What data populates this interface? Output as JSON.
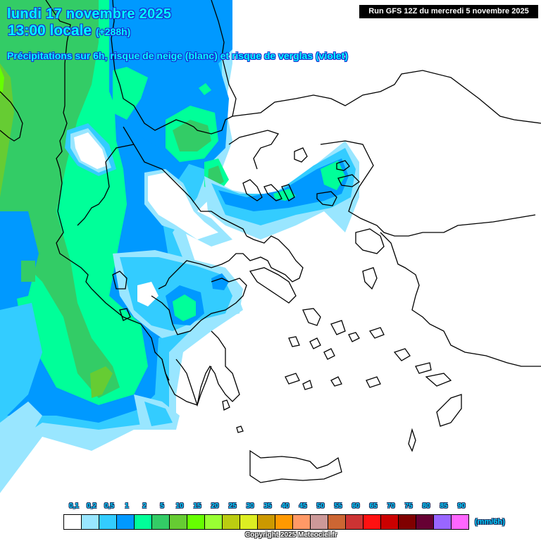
{
  "header": {
    "date": "lundi 17 novembre 2025",
    "time": "13:00 locale",
    "offset": "(+288h)",
    "subtitle": "Précipitations sur 6h, risque de neige (blanc) et risque de verglas (violet)",
    "run": "Run GFS 12Z du mercredi 5 novembre 2025"
  },
  "legend": {
    "unit": "(mm/6h)",
    "ticks": [
      "0,1",
      "0,2",
      "0,5",
      "1",
      "2",
      "5",
      "10",
      "15",
      "20",
      "25",
      "30",
      "35",
      "40",
      "45",
      "50",
      "55",
      "60",
      "65",
      "70",
      "75",
      "80",
      "85",
      "90"
    ],
    "colors": [
      "#ffffff",
      "#99e6ff",
      "#33ccff",
      "#0099ff",
      "#00ff99",
      "#33cc66",
      "#66cc33",
      "#66ff00",
      "#99ff33",
      "#bbcc11",
      "#ddee22",
      "#cc9900",
      "#ff9900",
      "#ff9966",
      "#cc9999",
      "#cc6633",
      "#cc3333",
      "#ff1111",
      "#cc0000",
      "#800000",
      "#660033",
      "#9966ff",
      "#ff66ff"
    ]
  },
  "copyright": "Copyright 2025 Meteociel.fr",
  "colors": {
    "light_blue": "#99e6ff",
    "sky_blue": "#33ccff",
    "blue": "#0099ff",
    "mint": "#00ff99",
    "green": "#33cc66",
    "olive_green": "#66cc33",
    "lime": "#66ff00"
  }
}
